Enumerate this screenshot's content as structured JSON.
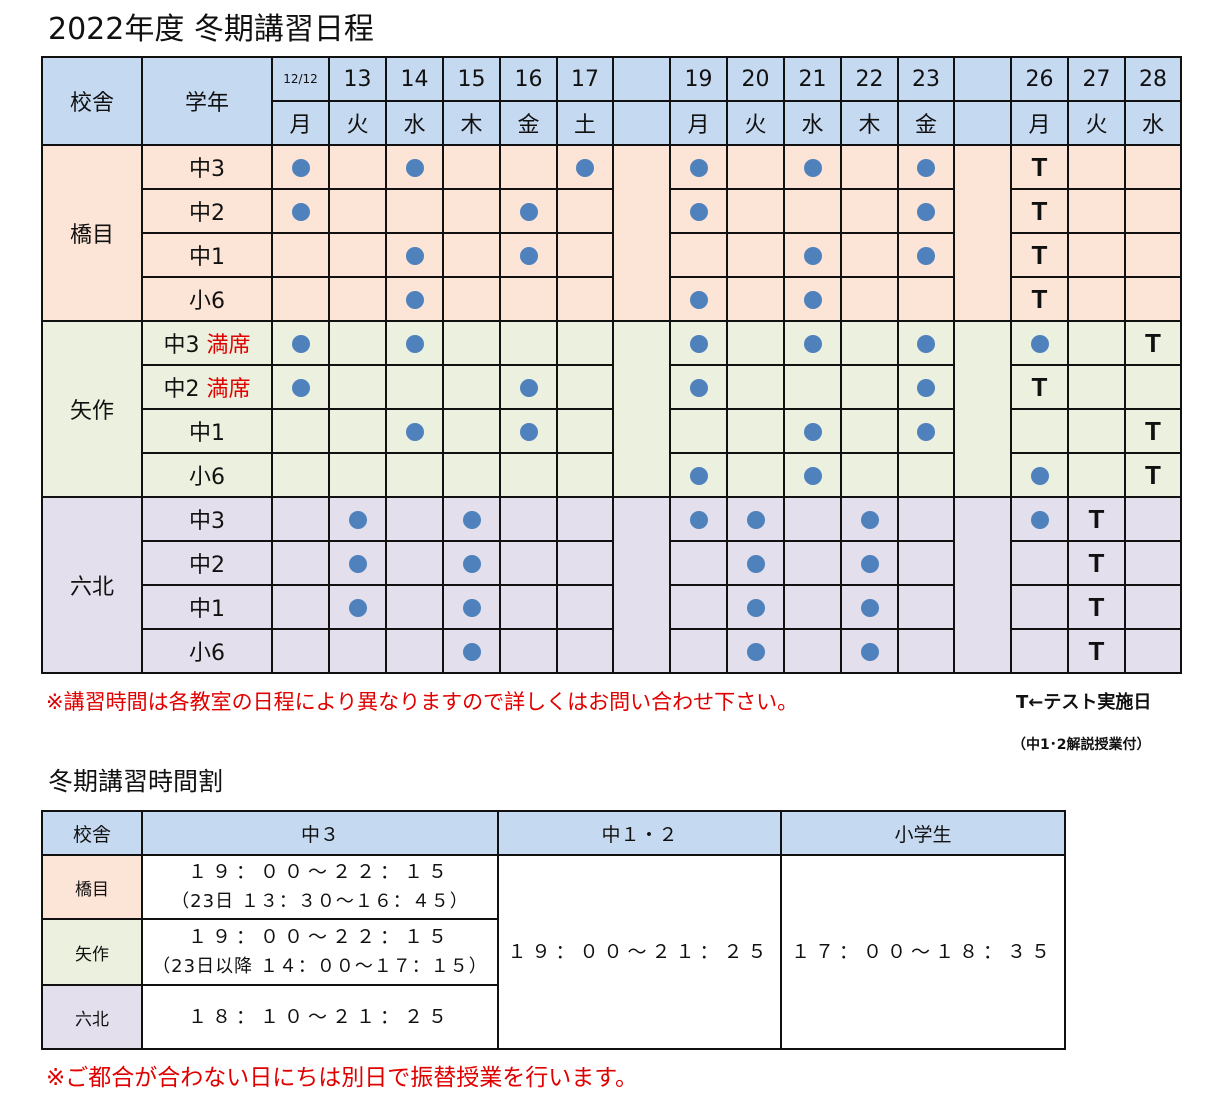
{
  "title": "2022年度 冬期講習日程",
  "schedule": {
    "header_campus": "校舎",
    "header_grade": "学年",
    "dates": [
      "12/12",
      "13",
      "14",
      "15",
      "16",
      "17",
      "",
      "19",
      "20",
      "21",
      "22",
      "23",
      "",
      "26",
      "27",
      "28"
    ],
    "days": [
      "月",
      "火",
      "水",
      "木",
      "金",
      "土",
      "",
      "月",
      "火",
      "水",
      "木",
      "金",
      "",
      "月",
      "火",
      "水"
    ],
    "campuses": [
      {
        "name": "橋目",
        "color": "#fce4d6",
        "rows": [
          {
            "grade": "中3",
            "status": "",
            "marks": [
              "●",
              "",
              "●",
              "",
              "",
              "●",
              "",
              "●",
              "",
              "●",
              "",
              "●",
              "",
              "T",
              "",
              ""
            ]
          },
          {
            "grade": "中2",
            "status": "",
            "marks": [
              "●",
              "",
              "",
              "",
              "●",
              "",
              "",
              "●",
              "",
              "",
              "",
              "●",
              "",
              "T",
              "",
              ""
            ]
          },
          {
            "grade": "中1",
            "status": "",
            "marks": [
              "",
              "",
              "●",
              "",
              "●",
              "",
              "",
              "",
              "",
              "●",
              "",
              "●",
              "",
              "T",
              "",
              ""
            ]
          },
          {
            "grade": "小6",
            "status": "",
            "marks": [
              "",
              "",
              "●",
              "",
              "",
              "",
              "",
              "●",
              "",
              "●",
              "",
              "",
              "",
              "T",
              "",
              ""
            ]
          }
        ]
      },
      {
        "name": "矢作",
        "color": "#ebf1de",
        "rows": [
          {
            "grade": "中3",
            "status": "満席",
            "marks": [
              "●",
              "",
              "●",
              "",
              "",
              "",
              "",
              "●",
              "",
              "●",
              "",
              "●",
              "",
              "●",
              "",
              "T"
            ]
          },
          {
            "grade": "中2",
            "status": "満席",
            "marks": [
              "●",
              "",
              "",
              "",
              "●",
              "",
              "",
              "●",
              "",
              "",
              "",
              "●",
              "",
              "T",
              "",
              ""
            ]
          },
          {
            "grade": "中1",
            "status": "",
            "marks": [
              "",
              "",
              "●",
              "",
              "●",
              "",
              "",
              "",
              "",
              "●",
              "",
              "●",
              "",
              "",
              "",
              "T"
            ]
          },
          {
            "grade": "小6",
            "status": "",
            "marks": [
              "",
              "",
              "",
              "",
              "",
              "",
              "",
              "●",
              "",
              "●",
              "",
              "",
              "",
              "●",
              "",
              "T"
            ]
          }
        ]
      },
      {
        "name": "六北",
        "color": "#e4dfec",
        "rows": [
          {
            "grade": "中3",
            "status": "",
            "marks": [
              "",
              "●",
              "",
              "●",
              "",
              "",
              "",
              "●",
              "●",
              "",
              "●",
              "",
              "",
              "●",
              "T",
              ""
            ]
          },
          {
            "grade": "中2",
            "status": "",
            "marks": [
              "",
              "●",
              "",
              "●",
              "",
              "",
              "",
              "",
              "●",
              "",
              "●",
              "",
              "",
              "",
              "T",
              ""
            ]
          },
          {
            "grade": "中1",
            "status": "",
            "marks": [
              "",
              "●",
              "",
              "●",
              "",
              "",
              "",
              "",
              "●",
              "",
              "●",
              "",
              "",
              "",
              "T",
              ""
            ]
          },
          {
            "grade": "小6",
            "status": "",
            "marks": [
              "",
              "",
              "",
              "●",
              "",
              "",
              "",
              "",
              "●",
              "",
              "●",
              "",
              "",
              "",
              "T",
              ""
            ]
          }
        ]
      }
    ]
  },
  "note_schedule": "※講習時間は各教室の日程により異なりますので詳しくはお問い合わせ下さい。",
  "legend_t": "T←テスト実施日",
  "legend_t_sub": "（中1･2解説授業付）",
  "timetable_title": "冬期講習時間割",
  "timetable": {
    "headers": [
      "校舎",
      "中３",
      "中１・２",
      "小学生"
    ],
    "rows": [
      {
        "campus": "橋目",
        "color": "#fce4d6",
        "chu3_time": "１９：００～２２：１５",
        "chu3_note": "（23日 １３：３０～１６：４５）"
      },
      {
        "campus": "矢作",
        "color": "#ebf1de",
        "chu3_time": "１９：００～２２：１５",
        "chu3_note": "（23日以降 １４：００～１７：１５）"
      },
      {
        "campus": "六北",
        "color": "#e4dfec",
        "chu3_time": "１８：１０～２１：２５",
        "chu3_note": ""
      }
    ],
    "chu12_time": "１９：００～２１：２５",
    "elementary_time": "１７：００～１８：３５"
  },
  "note_makeup": "※ご都合が合わない日にちは別日で振替授業を行います。",
  "colors": {
    "header": "#c5d9f1",
    "dot": "#4f81bd",
    "alert": "#e00000"
  }
}
